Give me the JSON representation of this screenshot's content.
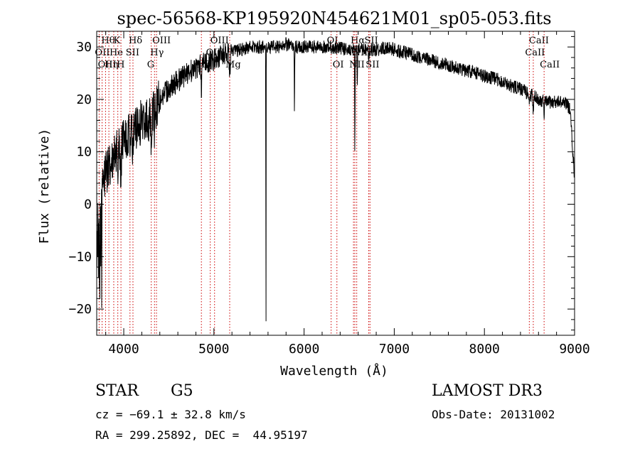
{
  "chart_data": {
    "type": "line",
    "title": "spec-56568-KP195920N454621M01_sp05-053.fits",
    "xlabel": "Wavelength (Å)",
    "ylabel": "Flux (relative)",
    "xlim": [
      3700,
      9000
    ],
    "ylim": [
      -25,
      33
    ],
    "xticks": [
      4000,
      5000,
      6000,
      7000,
      8000,
      9000
    ],
    "xtick_labels": [
      "4000",
      "5000",
      "6000",
      "7000",
      "8000",
      "9000"
    ],
    "yticks": [
      -20,
      -10,
      0,
      10,
      20,
      30
    ],
    "ytick_labels": [
      "−20",
      "−10",
      "0",
      "10",
      "20",
      "30"
    ],
    "line_color": "#000000",
    "marker_color": "#cc0000",
    "continuum": [
      [
        3700,
        3
      ],
      [
        3750,
        4
      ],
      [
        3800,
        6
      ],
      [
        3850,
        8
      ],
      [
        3900,
        10
      ],
      [
        3950,
        11
      ],
      [
        4000,
        12
      ],
      [
        4050,
        13
      ],
      [
        4100,
        14
      ],
      [
        4150,
        15
      ],
      [
        4200,
        15.5
      ],
      [
        4250,
        16
      ],
      [
        4300,
        16.5
      ],
      [
        4350,
        18
      ],
      [
        4400,
        20
      ],
      [
        4450,
        21
      ],
      [
        4500,
        22
      ],
      [
        4600,
        23.5
      ],
      [
        4700,
        25
      ],
      [
        4800,
        26
      ],
      [
        4900,
        27
      ],
      [
        5000,
        27.5
      ],
      [
        5100,
        28.5
      ],
      [
        5200,
        29
      ],
      [
        5300,
        29.5
      ],
      [
        5400,
        30
      ],
      [
        5500,
        30
      ],
      [
        5600,
        30
      ],
      [
        5700,
        30
      ],
      [
        5800,
        30.5
      ],
      [
        5900,
        30
      ],
      [
        6000,
        30
      ],
      [
        6100,
        30
      ],
      [
        6200,
        30
      ],
      [
        6300,
        30
      ],
      [
        6400,
        29.8
      ],
      [
        6500,
        29.5
      ],
      [
        6600,
        29.5
      ],
      [
        6700,
        29.5
      ],
      [
        6800,
        29.5
      ],
      [
        6900,
        29.8
      ],
      [
        7000,
        29.5
      ],
      [
        7100,
        29
      ],
      [
        7200,
        28.5
      ],
      [
        7300,
        28
      ],
      [
        7400,
        27.5
      ],
      [
        7500,
        27
      ],
      [
        7600,
        26.5
      ],
      [
        7700,
        26
      ],
      [
        7800,
        25.5
      ],
      [
        7900,
        25
      ],
      [
        8000,
        24.5
      ],
      [
        8100,
        24
      ],
      [
        8200,
        23.5
      ],
      [
        8300,
        22.5
      ],
      [
        8400,
        22
      ],
      [
        8500,
        21
      ],
      [
        8600,
        20
      ],
      [
        8700,
        19.5
      ],
      [
        8800,
        19.5
      ],
      [
        8900,
        19.5
      ],
      [
        8950,
        18
      ],
      [
        9000,
        5
      ]
    ],
    "absorption_features": [
      {
        "center": 3934,
        "depth": 8,
        "width": 6
      },
      {
        "center": 3969,
        "depth": 6,
        "width": 6
      },
      {
        "center": 4101,
        "depth": 3,
        "width": 6
      },
      {
        "center": 4305,
        "depth": 3,
        "width": 8
      },
      {
        "center": 4341,
        "depth": 3,
        "width": 6
      },
      {
        "center": 4861,
        "depth": 8,
        "width": 4
      },
      {
        "center": 5175,
        "depth": 3,
        "width": 8
      },
      {
        "center": 5577,
        "depth": 55,
        "width": 2
      },
      {
        "center": 5893,
        "depth": 12,
        "width": 3
      },
      {
        "center": 6563,
        "depth": 19,
        "width": 3
      },
      {
        "center": 6590,
        "depth": 8,
        "width": 3
      },
      {
        "center": 6717,
        "depth": 3,
        "width": 4
      },
      {
        "center": 8498,
        "depth": 2,
        "width": 6
      },
      {
        "center": 8542,
        "depth": 3,
        "width": 6
      },
      {
        "center": 8662,
        "depth": 3,
        "width": 6
      }
    ],
    "line_markers": [
      {
        "label": "Hθ",
        "x": 3798,
        "row": 0
      },
      {
        "label": "OII",
        "x": 3727,
        "row": 1
      },
      {
        "label": "OIII",
        "x": 3760,
        "row": 2
      },
      {
        "label": "Hη",
        "x": 3835,
        "row": 2
      },
      {
        "label": "He",
        "x": 3889,
        "row": 1
      },
      {
        "label": "K",
        "x": 3934,
        "row": 0
      },
      {
        "label": "H",
        "x": 3969,
        "row": 2
      },
      {
        "label": "SII",
        "x": 4069,
        "row": 1
      },
      {
        "label": "Hδ",
        "x": 4102,
        "row": 0
      },
      {
        "label": "OIII",
        "x": 4363,
        "row": 0
      },
      {
        "label": "Hγ",
        "x": 4341,
        "row": 1
      },
      {
        "label": "G",
        "x": 4305,
        "row": 2
      },
      {
        "label": "Hβ",
        "x": 4861,
        "row": 2
      },
      {
        "label": "OIII",
        "x": 5007,
        "row": 0
      },
      {
        "label": "OIII",
        "x": 4959,
        "row": 1
      },
      {
        "label": "Mg",
        "x": 5175,
        "row": 2
      },
      {
        "label": "OI",
        "x": 6300,
        "row": 0
      },
      {
        "label": "OI",
        "x": 6364,
        "row": 2
      },
      {
        "label": "Hα",
        "x": 6563,
        "row": 0
      },
      {
        "label": "NII",
        "x": 6548,
        "row": 2
      },
      {
        "label": "NII",
        "x": 6584,
        "row": 1
      },
      {
        "label": "SII",
        "x": 6717,
        "row": 0
      },
      {
        "label": "SII",
        "x": 6731,
        "row": 2
      },
      {
        "label": "CaII",
        "x": 8542,
        "row": 0
      },
      {
        "label": "CaII",
        "x": 8498,
        "row": 1
      },
      {
        "label": "CaII",
        "x": 8662,
        "row": 2
      }
    ]
  },
  "info": {
    "object_class": "STAR",
    "subclass": "G5",
    "survey": "LAMOST DR3",
    "cz": "cz = −69.1 ± 32.8 km/s",
    "obs_date": "Obs-Date: 20131002",
    "coords": "RA = 299.25892, DEC =  44.95197"
  }
}
